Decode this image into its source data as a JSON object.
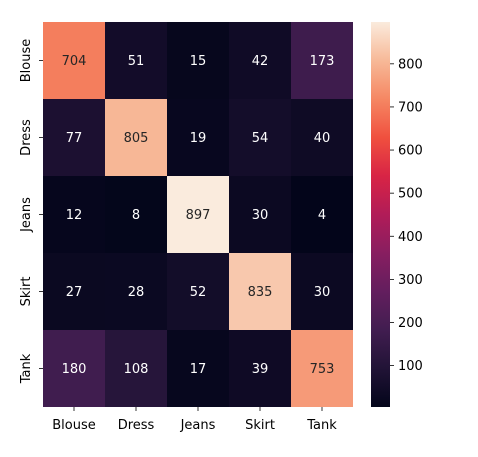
{
  "chart_data": {
    "type": "heatmap",
    "x_categories": [
      "Blouse",
      "Dress",
      "Jeans",
      "Skirt",
      "Tank"
    ],
    "y_categories": [
      "Blouse",
      "Dress",
      "Jeans",
      "Skirt",
      "Tank"
    ],
    "values": [
      [
        704,
        51,
        15,
        42,
        173
      ],
      [
        77,
        805,
        19,
        54,
        40
      ],
      [
        12,
        8,
        897,
        30,
        4
      ],
      [
        27,
        28,
        52,
        835,
        30
      ],
      [
        180,
        108,
        17,
        39,
        753
      ]
    ],
    "colorbar": {
      "min": 4,
      "max": 897,
      "ticks": [
        100,
        200,
        300,
        400,
        500,
        600,
        700,
        800
      ],
      "colormap": "rocket"
    },
    "annotations": true,
    "title": "",
    "xlabel": "",
    "ylabel": ""
  }
}
